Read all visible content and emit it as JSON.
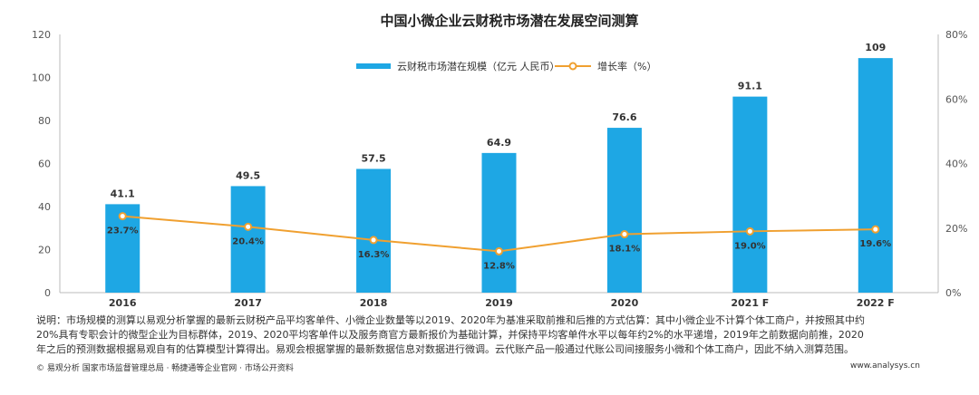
{
  "chart_data": {
    "type": "bar",
    "title": "中国小微企业云财税市场潜在发展空间测算",
    "categories": [
      "2016",
      "2017",
      "2018",
      "2019",
      "2020",
      "2021 F",
      "2022 F"
    ],
    "series": [
      {
        "name": "云财税市场潜在规模（亿元 人民币）",
        "type": "bar",
        "axis": "left",
        "values": [
          41.1,
          49.5,
          57.5,
          64.9,
          76.6,
          91.1,
          109
        ],
        "labels": [
          "41.1",
          "49.5",
          "57.5",
          "64.9",
          "76.6",
          "91.1",
          "109"
        ]
      },
      {
        "name": "增长率（%）",
        "type": "line",
        "axis": "right",
        "values": [
          23.7,
          20.4,
          16.3,
          12.8,
          18.1,
          19.0,
          19.6
        ],
        "labels": [
          "23.7%",
          "20.4%",
          "16.3%",
          "12.8%",
          "18.1%",
          "19.0%",
          "19.6%"
        ]
      }
    ],
    "y_left": {
      "ylim": [
        0,
        120
      ],
      "ticks": [
        "0",
        "20",
        "40",
        "60",
        "80",
        "100",
        "120"
      ]
    },
    "y_right": {
      "ylim": [
        0,
        80
      ],
      "ticks": [
        "0%",
        "20%",
        "40%",
        "60%",
        "80%"
      ]
    },
    "legend": "top-center",
    "grid": false
  },
  "colors": {
    "bar": "#1ea7e4",
    "line": "#f0a030",
    "axis": "#bbbbbb"
  },
  "note": {
    "line1": "说明：市场规模的测算以易观分析掌握的最新云财税产品平均客单件、小微企业数量等以2019、2020年为基准采取前推和后推的方式估算：其中小微企业不计算个体工商户，并按照其中约",
    "line2": "20%具有专职会计的微型企业为目标群体，2019、2020平均客单件以及服务商官方最新报价为基础计算，并保持平均客单件水平以每年约2%的水平递增，2019年之前数据向前推，2020",
    "line3": "年之后的预测数据根据易观自有的估算模型计算得出。易观会根据掌握的最新数据信息对数据进行微调。云代账产品一般通过代账公司间接服务小微和个体工商户，因此不纳入测算范围。"
  },
  "footer": {
    "source": "© 易观分析 国家市场监督管理总局 · 畅捷通等企业官网 · 市场公开资料",
    "site": "www.analysys.cn"
  }
}
